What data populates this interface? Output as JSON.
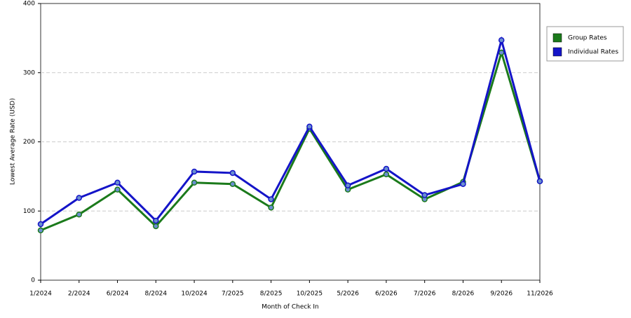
{
  "chart_data": {
    "type": "line",
    "x_label": "Month of Check In",
    "y_label": "Lowest Average Rate (USD)",
    "categories": [
      "1/2024",
      "2/2024",
      "6/2024",
      "8/2024",
      "10/2024",
      "7/2025",
      "8/2025",
      "10/2025",
      "5/2026",
      "6/2026",
      "7/2026",
      "8/2026",
      "9/2026",
      "11/2026"
    ],
    "series": [
      {
        "name": "Group Rates",
        "color": "#1b7a1b",
        "values": [
          72,
          95,
          131,
          78,
          141,
          139,
          105,
          219,
          131,
          153,
          117,
          142,
          329,
          143
        ]
      },
      {
        "name": "Individual Rates",
        "color": "#1414c8",
        "values": [
          81,
          119,
          141,
          86,
          157,
          155,
          117,
          222,
          137,
          161,
          123,
          139,
          347,
          143
        ]
      }
    ],
    "ylim": [
      0,
      400
    ],
    "yticks": [
      0,
      100,
      200,
      300,
      400
    ],
    "grid": true,
    "legend": "right"
  }
}
